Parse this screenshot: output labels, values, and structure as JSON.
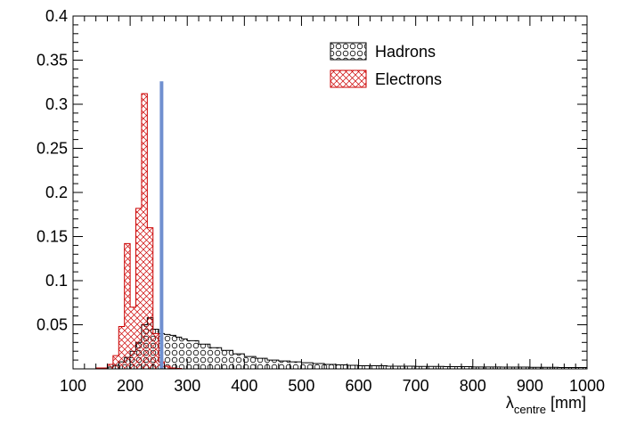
{
  "chart_data": {
    "type": "bar",
    "title": "",
    "xlabel": {
      "symbol": "λ",
      "subscript": "centre",
      "unit": "[mm]"
    },
    "ylabel": "",
    "xlim": [
      100,
      1000
    ],
    "ylim": [
      0,
      0.4
    ],
    "x_ticks": [
      "100",
      "200",
      "300",
      "400",
      "500",
      "600",
      "700",
      "800",
      "900",
      "1000"
    ],
    "y_ticks": [
      "0.05",
      "0.1",
      "0.15",
      "0.2",
      "0.25",
      "0.3",
      "0.35",
      "0.4"
    ],
    "bin_width": 10,
    "legend": {
      "placement": "top-right",
      "entries": [
        {
          "name": "Hadrons",
          "pattern": "circles",
          "color": "#000000"
        },
        {
          "name": "Electrons",
          "pattern": "crosshatch",
          "color": "#cc0000"
        }
      ]
    },
    "series": [
      {
        "name": "Hadrons",
        "color": "#000000",
        "bin_edges": [
          150,
          160,
          170,
          180,
          190,
          200,
          210,
          220,
          230,
          240,
          250,
          260,
          270,
          280,
          290,
          300,
          320,
          340,
          360,
          380,
          400,
          420,
          440,
          460,
          480,
          500,
          520,
          540,
          560,
          580,
          600,
          650,
          700,
          750,
          800,
          850,
          900,
          950,
          1000
        ],
        "values": [
          0.001,
          0.002,
          0.004,
          0.008,
          0.013,
          0.02,
          0.03,
          0.05,
          0.058,
          0.045,
          0.04,
          0.039,
          0.038,
          0.036,
          0.034,
          0.032,
          0.028,
          0.024,
          0.021,
          0.017,
          0.014,
          0.012,
          0.01,
          0.009,
          0.008,
          0.007,
          0.006,
          0.005,
          0.0045,
          0.004,
          0.0035,
          0.003,
          0.0028,
          0.0025,
          0.0022,
          0.002,
          0.0018,
          0.0015
        ]
      },
      {
        "name": "Electrons",
        "color": "#cc0000",
        "bin_edges": [
          140,
          160,
          170,
          180,
          190,
          200,
          210,
          220,
          230,
          240,
          250,
          260,
          270,
          280,
          290
        ],
        "values": [
          0.001,
          0.005,
          0.015,
          0.048,
          0.142,
          0.07,
          0.182,
          0.312,
          0.16,
          0.04,
          0.008,
          0.003,
          0.001,
          0.0005
        ]
      }
    ],
    "cut_line": {
      "x": 255,
      "y_max": 0.326,
      "color": "#7090d0"
    }
  }
}
